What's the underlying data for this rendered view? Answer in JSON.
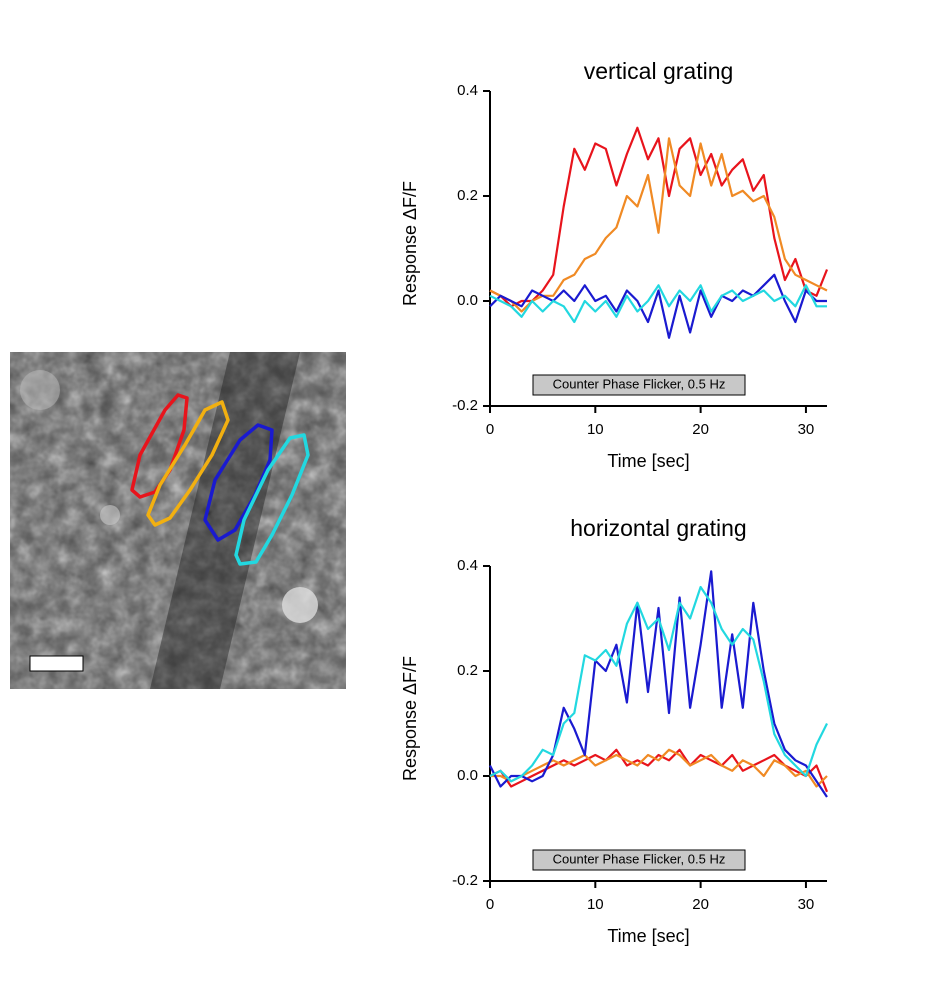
{
  "chart_data": [
    {
      "type": "line",
      "title": "vertical grating",
      "xlabel": "Time [sec]",
      "ylabel": "Response ΔF/F",
      "annotation": "Counter Phase Flicker, 0.5 Hz",
      "xlim": [
        0,
        32
      ],
      "ylim": [
        -0.2,
        0.4
      ],
      "xticks": [
        0,
        10,
        20,
        30
      ],
      "yticks": [
        -0.2,
        {
          "value": 0,
          "label": "0.0"
        },
        0.2,
        0.4
      ],
      "x": [
        0,
        1,
        2,
        3,
        4,
        5,
        6,
        7,
        8,
        9,
        10,
        11,
        12,
        13,
        14,
        15,
        16,
        17,
        18,
        19,
        20,
        21,
        22,
        23,
        24,
        25,
        26,
        27,
        28,
        29,
        30,
        31,
        32
      ],
      "series": [
        {
          "color": "#e8141c",
          "values": [
            0.02,
            0.01,
            -0.01,
            0.0,
            0.0,
            0.02,
            0.05,
            0.18,
            0.29,
            0.25,
            0.3,
            0.29,
            0.22,
            0.28,
            0.33,
            0.27,
            0.31,
            0.2,
            0.29,
            0.31,
            0.24,
            0.28,
            0.22,
            0.25,
            0.27,
            0.21,
            0.24,
            0.12,
            0.04,
            0.08,
            0.02,
            0.01,
            0.06
          ]
        },
        {
          "color": "#f08a24",
          "values": [
            0.02,
            0.01,
            0.0,
            -0.02,
            0.0,
            0.01,
            0.01,
            0.04,
            0.05,
            0.08,
            0.09,
            0.12,
            0.14,
            0.2,
            0.18,
            0.24,
            0.13,
            0.31,
            0.22,
            0.2,
            0.3,
            0.22,
            0.28,
            0.2,
            0.21,
            0.19,
            0.2,
            0.16,
            0.08,
            0.05,
            0.04,
            0.03,
            0.02
          ]
        },
        {
          "color": "#1a1ad0",
          "values": [
            -0.01,
            0.01,
            0.0,
            -0.01,
            0.02,
            0.01,
            0.0,
            0.02,
            0.0,
            0.03,
            0.0,
            0.01,
            -0.02,
            0.02,
            0.0,
            -0.04,
            0.02,
            -0.07,
            0.01,
            -0.06,
            0.02,
            -0.03,
            0.01,
            0.0,
            0.02,
            0.01,
            0.03,
            0.05,
            0.0,
            -0.04,
            0.02,
            0.0,
            0.0
          ]
        },
        {
          "color": "#22d8e0",
          "values": [
            0.01,
            0.0,
            -0.01,
            -0.03,
            0.0,
            -0.02,
            0.0,
            -0.01,
            -0.04,
            0.0,
            -0.02,
            0.0,
            -0.03,
            0.01,
            -0.02,
            0.0,
            0.03,
            -0.01,
            0.02,
            0.0,
            0.03,
            -0.02,
            0.01,
            0.02,
            0.0,
            0.01,
            0.02,
            0.0,
            0.01,
            -0.01,
            0.03,
            -0.01,
            -0.01
          ]
        }
      ]
    },
    {
      "type": "line",
      "title": "horizontal grating",
      "xlabel": "Time [sec]",
      "ylabel": "Response ΔF/F",
      "annotation": "Counter Phase Flicker, 0.5 Hz",
      "xlim": [
        0,
        32
      ],
      "ylim": [
        -0.2,
        0.4
      ],
      "xticks": [
        0,
        10,
        20,
        30
      ],
      "yticks": [
        -0.2,
        {
          "value": 0,
          "label": "0.0"
        },
        0.2,
        0.4
      ],
      "x": [
        0,
        1,
        2,
        3,
        4,
        5,
        6,
        7,
        8,
        9,
        10,
        11,
        12,
        13,
        14,
        15,
        16,
        17,
        18,
        19,
        20,
        21,
        22,
        23,
        24,
        25,
        26,
        27,
        28,
        29,
        30,
        31,
        32
      ],
      "series": [
        {
          "color": "#e8141c",
          "values": [
            0.0,
            0.01,
            -0.02,
            -0.01,
            0.0,
            0.01,
            0.02,
            0.03,
            0.02,
            0.03,
            0.04,
            0.03,
            0.05,
            0.02,
            0.03,
            0.02,
            0.04,
            0.03,
            0.05,
            0.02,
            0.04,
            0.03,
            0.02,
            0.04,
            0.01,
            0.02,
            0.03,
            0.04,
            0.02,
            0.01,
            0.0,
            0.02,
            -0.03
          ]
        },
        {
          "color": "#f08a24",
          "values": [
            0.0,
            0.0,
            -0.01,
            0.0,
            0.01,
            0.02,
            0.03,
            0.02,
            0.03,
            0.04,
            0.02,
            0.03,
            0.04,
            0.03,
            0.02,
            0.04,
            0.03,
            0.05,
            0.04,
            0.02,
            0.03,
            0.04,
            0.02,
            0.01,
            0.03,
            0.02,
            0.0,
            0.03,
            0.02,
            0.0,
            0.01,
            -0.02,
            0.0
          ]
        },
        {
          "color": "#1a1ad0",
          "values": [
            0.02,
            -0.02,
            0.0,
            0.0,
            -0.01,
            0.0,
            0.04,
            0.13,
            0.09,
            0.04,
            0.22,
            0.2,
            0.25,
            0.14,
            0.33,
            0.16,
            0.32,
            0.12,
            0.34,
            0.13,
            0.25,
            0.39,
            0.13,
            0.27,
            0.13,
            0.33,
            0.2,
            0.1,
            0.05,
            0.03,
            0.02,
            -0.01,
            -0.04
          ]
        },
        {
          "color": "#22d8e0",
          "values": [
            0.0,
            0.01,
            -0.01,
            0.0,
            0.02,
            0.05,
            0.04,
            0.1,
            0.12,
            0.23,
            0.22,
            0.24,
            0.21,
            0.29,
            0.33,
            0.28,
            0.3,
            0.24,
            0.33,
            0.3,
            0.36,
            0.33,
            0.28,
            0.25,
            0.28,
            0.26,
            0.18,
            0.08,
            0.04,
            0.02,
            0.0,
            0.06,
            0.1
          ]
        }
      ]
    }
  ]
}
